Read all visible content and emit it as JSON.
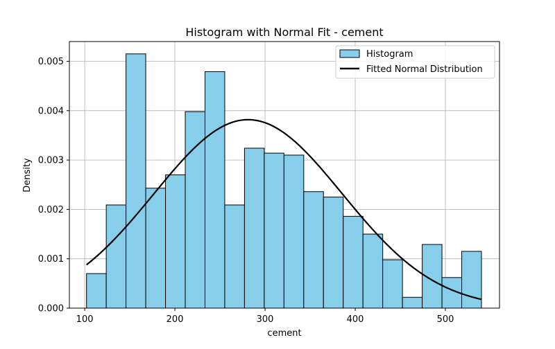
{
  "chart_data": {
    "type": "bar",
    "title": "Histogram with Normal Fit - cement",
    "xlabel": "cement",
    "ylabel": "Density",
    "xlim": [
      83.0,
      560.0
    ],
    "ylim": [
      0.0,
      0.0054
    ],
    "xticks": [
      100,
      200,
      300,
      400,
      500
    ],
    "yticks": [
      0.0,
      0.001,
      0.002,
      0.003,
      0.004,
      0.005
    ],
    "xtick_labels": [
      "100",
      "200",
      "300",
      "400",
      "500"
    ],
    "ytick_labels": [
      "0.000",
      "0.001",
      "0.002",
      "0.003",
      "0.004",
      "0.005"
    ],
    "grid": true,
    "legend_placement": "top-right",
    "bar_color": "#87ceeb",
    "edge_color": "#000000",
    "line_color": "#000000",
    "histogram": {
      "name": "Histogram",
      "bin_edges": [
        102.0,
        123.9,
        145.8,
        167.7,
        189.6,
        211.5,
        233.4,
        255.3,
        277.2,
        299.1,
        321.0,
        342.9,
        364.8,
        386.7,
        408.6,
        430.5,
        452.4,
        474.3,
        496.2,
        518.1,
        540.0
      ],
      "values": [
        0.0007,
        0.00209,
        0.00515,
        0.00243,
        0.0027,
        0.00398,
        0.00479,
        0.00209,
        0.00324,
        0.00314,
        0.0031,
        0.00236,
        0.00225,
        0.00186,
        0.0015,
        0.00098,
        0.00022,
        0.00129,
        0.00062,
        0.00115
      ]
    },
    "normal_fit": {
      "name": "Fitted Normal Distribution",
      "mean": 281.2,
      "std": 104.5,
      "x_range": [
        102.0,
        540.0
      ]
    }
  }
}
